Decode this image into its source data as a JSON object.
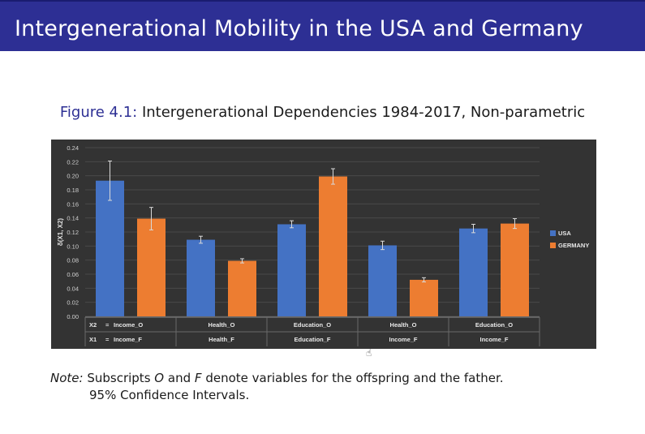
{
  "slide": {
    "title": "Intergenerational Mobility in the USA and Germany"
  },
  "caption": {
    "label": "Figure 4.1:",
    "text": "Intergenerational Dependencies 1984-2017, Non-parametric"
  },
  "note": {
    "label": "Note:",
    "text_parts": [
      "Subscripts",
      "O",
      "and",
      "F",
      "denote variables for the offspring and the father."
    ],
    "line2": "95% Confidence Intervals."
  },
  "icons": {
    "cursor": "hand-pointer-icon"
  },
  "colors": {
    "usa": "#4472c4",
    "germany": "#ed7d31",
    "chart_background": "#333333"
  },
  "chart_data": {
    "type": "bar",
    "ylabel": "δ(X1, X2)",
    "ylim": [
      0,
      0.24
    ],
    "yticks": [
      "0.00",
      "0.02",
      "0.04",
      "0.06",
      "0.08",
      "0.10",
      "0.12",
      "0.14",
      "0.16",
      "0.18",
      "0.20",
      "0.22",
      "0.24"
    ],
    "row_labels": [
      "X2",
      "X1"
    ],
    "row_separator": "=",
    "categories_x2": [
      "Income_O",
      "Health_O",
      "Education_O",
      "Health_O",
      "Education_O"
    ],
    "categories_x1": [
      "Income_F",
      "Health_F",
      "Education_F",
      "Income_F",
      "Income_F"
    ],
    "series": [
      {
        "name": "USA",
        "values": [
          0.193,
          0.109,
          0.131,
          0.101,
          0.125
        ],
        "ci_low": [
          0.165,
          0.104,
          0.126,
          0.095,
          0.119
        ],
        "ci_high": [
          0.221,
          0.114,
          0.136,
          0.107,
          0.131
        ]
      },
      {
        "name": "GERMANY",
        "values": [
          0.139,
          0.079,
          0.199,
          0.052,
          0.132
        ],
        "ci_low": [
          0.123,
          0.076,
          0.188,
          0.049,
          0.125
        ],
        "ci_high": [
          0.155,
          0.082,
          0.21,
          0.055,
          0.139
        ]
      }
    ],
    "legend_position": "right",
    "grid": true
  }
}
